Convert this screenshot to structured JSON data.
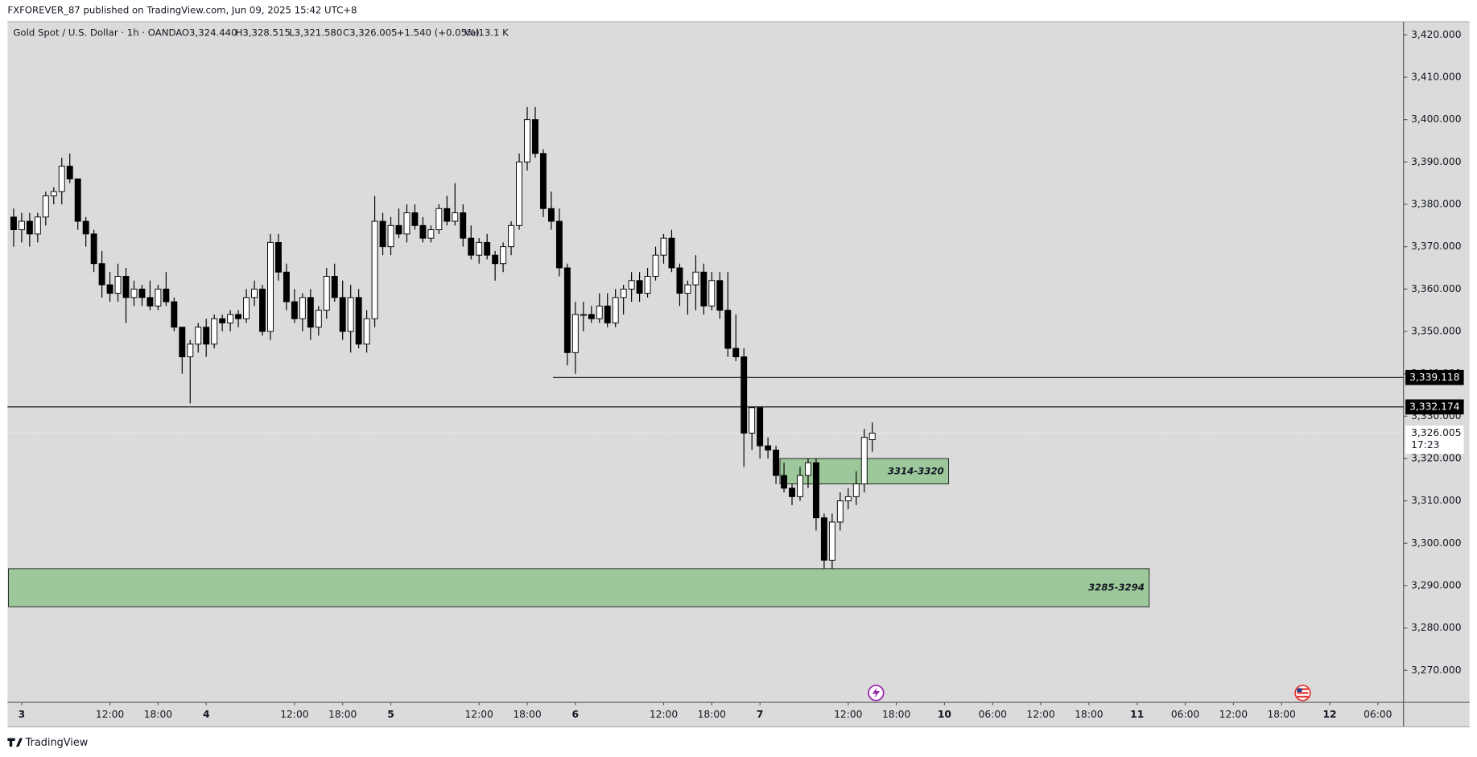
{
  "header": {
    "publisher": "FXFOREVER_87 published on TradingView.com, Jun 09, 2025 15:42 UTC+8"
  },
  "footer": {
    "brand": "TradingView"
  },
  "chart_data": {
    "type": "candlestick",
    "title": "Gold Spot / U.S. Dollar · 1h · OANDA",
    "ohlc_labels": [
      "O3,324.440",
      "H3,328.515",
      "L3,321.580",
      "C3,326.005"
    ],
    "change_label": "+1.540 (+0.05%)",
    "volume_label": "Vol13.1 K",
    "open": [
      3377,
      3374,
      3376,
      3373,
      3377,
      3382,
      3383,
      3389,
      3386,
      3376,
      3373,
      3366,
      3361,
      3359,
      3363,
      3358,
      3360,
      3358,
      3356,
      3360,
      3357,
      3351,
      3344,
      3347,
      3351,
      3347,
      3353,
      3352,
      3354,
      3353,
      3358,
      3360,
      3350,
      3371,
      3364,
      3357,
      3353,
      3358,
      3351,
      3355,
      3363,
      3358,
      3350,
      3358,
      3347,
      3353,
      3376,
      3370,
      3375,
      3373,
      3378,
      3375,
      3372,
      3374,
      3379,
      3376,
      3378,
      3372,
      3368,
      3371,
      3368,
      3366,
      3370,
      3375,
      3390,
      3400,
      3392,
      3379,
      3376,
      3365,
      3345,
      3354,
      3354,
      3353,
      3356,
      3352,
      3358,
      3360,
      3362,
      3359,
      3363,
      3368,
      3372,
      3365,
      3359,
      3361,
      3364,
      3356,
      3362,
      3355,
      3346,
      3344,
      3326,
      3332,
      3323,
      3322,
      3316,
      3313,
      3311,
      3316,
      3319,
      3306,
      3296,
      3305,
      3310,
      3311,
      3314,
      3324.44
    ],
    "high": [
      3379,
      3378,
      3378,
      3378,
      3383,
      3384,
      3391,
      3392,
      3386,
      3377,
      3374,
      3369,
      3364,
      3366,
      3365,
      3362,
      3361,
      3362,
      3361,
      3364,
      3358,
      3351,
      3348,
      3352,
      3353,
      3354,
      3354,
      3355,
      3355,
      3360,
      3362,
      3361,
      3373,
      3373,
      3366,
      3360,
      3359,
      3360,
      3356,
      3365,
      3366,
      3362,
      3361,
      3360,
      3355,
      3382,
      3378,
      3377,
      3379,
      3380,
      3380,
      3377,
      3375,
      3380,
      3382,
      3385,
      3380,
      3375,
      3372,
      3373,
      3369,
      3371,
      3376,
      3392,
      3403,
      3403,
      3393,
      3383,
      3379,
      3366,
      3357,
      3357,
      3356,
      3359,
      3359,
      3360,
      3361,
      3364,
      3364,
      3365,
      3370,
      3373,
      3374,
      3366,
      3362,
      3368,
      3366,
      3364,
      3364,
      3364,
      3354,
      3346,
      3332,
      3332,
      3325,
      3323,
      3319,
      3314,
      3318,
      3320,
      3320,
      3307,
      3307,
      3312,
      3313,
      3317,
      3327,
      3328.515
    ],
    "low": [
      3370,
      3371,
      3370,
      3371,
      3375,
      3380,
      3380,
      3385,
      3374,
      3370,
      3364,
      3358,
      3357,
      3357,
      3352,
      3356,
      3356,
      3355,
      3355,
      3356,
      3350,
      3340,
      3333,
      3345,
      3344,
      3346,
      3350,
      3350,
      3351,
      3352,
      3356,
      3349,
      3348,
      3362,
      3355,
      3352,
      3350,
      3348,
      3349,
      3353,
      3357,
      3348,
      3345,
      3346,
      3345,
      3351,
      3368,
      3368,
      3372,
      3371,
      3374,
      3371,
      3371,
      3373,
      3375,
      3375,
      3370,
      3367,
      3366,
      3367,
      3362,
      3364,
      3368,
      3374,
      3388,
      3391,
      3377,
      3374,
      3363,
      3342,
      3340,
      3350,
      3352,
      3352,
      3351,
      3351,
      3354,
      3357,
      3357,
      3358,
      3362,
      3366,
      3364,
      3356,
      3354,
      3355,
      3354,
      3355,
      3353,
      3344,
      3343,
      3318,
      3322,
      3320,
      3320,
      3314,
      3312,
      3309,
      3310,
      3313,
      3303,
      3294,
      3294,
      3303,
      3308,
      3309,
      3312,
      3321.58
    ],
    "close": [
      3374,
      3376,
      3373,
      3377,
      3382,
      3383,
      3389,
      3386,
      3376,
      3373,
      3366,
      3361,
      3359,
      3363,
      3358,
      3360,
      3358,
      3356,
      3360,
      3357,
      3351,
      3344,
      3347,
      3351,
      3347,
      3353,
      3352,
      3354,
      3353,
      3358,
      3360,
      3350,
      3371,
      3364,
      3357,
      3353,
      3358,
      3351,
      3355,
      3363,
      3358,
      3350,
      3358,
      3347,
      3353,
      3376,
      3370,
      3375,
      3373,
      3378,
      3375,
      3372,
      3374,
      3379,
      3376,
      3378,
      3372,
      3368,
      3371,
      3368,
      3366,
      3370,
      3375,
      3390,
      3400,
      3392,
      3379,
      3376,
      3365,
      3345,
      3354,
      3354,
      3353,
      3356,
      3352,
      3358,
      3360,
      3362,
      3359,
      3363,
      3368,
      3372,
      3365,
      3359,
      3361,
      3364,
      3356,
      3362,
      3355,
      3346,
      3344,
      3326,
      3332,
      3323,
      3322,
      3316,
      3313,
      3311,
      3316,
      3319,
      3306,
      3296,
      3305,
      3310,
      3311,
      3314,
      3325,
      3326.005
    ],
    "up_color": "#ffffff",
    "down_color": "#000000",
    "xlim": [
      -0.76,
      173.2
    ],
    "xticks": [
      {
        "value": 1,
        "label": "3"
      },
      {
        "value": 12,
        "label": "12:00"
      },
      {
        "value": 18,
        "label": "18:00"
      },
      {
        "value": 24,
        "label": "4"
      },
      {
        "value": 35,
        "label": "12:00"
      },
      {
        "value": 41,
        "label": "18:00"
      },
      {
        "value": 47,
        "label": "5"
      },
      {
        "value": 58,
        "label": "12:00"
      },
      {
        "value": 64,
        "label": "18:00"
      },
      {
        "value": 70,
        "label": "6"
      },
      {
        "value": 81,
        "label": "12:00"
      },
      {
        "value": 87,
        "label": "18:00"
      },
      {
        "value": 93,
        "label": "7"
      },
      {
        "value": 104,
        "label": "12:00"
      },
      {
        "value": 110,
        "label": "18:00"
      },
      {
        "value": 116,
        "label": "10"
      },
      {
        "value": 122,
        "label": "06:00"
      },
      {
        "value": 128,
        "label": "12:00"
      },
      {
        "value": 134,
        "label": "18:00"
      },
      {
        "value": 140,
        "label": "11"
      },
      {
        "value": 146,
        "label": "06:00"
      },
      {
        "value": 152,
        "label": "12:00"
      },
      {
        "value": 158,
        "label": "18:00"
      },
      {
        "value": 164,
        "label": "12"
      },
      {
        "value": 170,
        "label": "06:00"
      }
    ],
    "ylim": [
      3262.44,
      3423.11
    ],
    "yticks": [
      {
        "value": 3270,
        "label": "3,270.000"
      },
      {
        "value": 3280,
        "label": "3,280.000"
      },
      {
        "value": 3290,
        "label": "3,290.000"
      },
      {
        "value": 3300,
        "label": "3,300.000"
      },
      {
        "value": 3310,
        "label": "3,310.000"
      },
      {
        "value": 3320,
        "label": "3,320.000"
      },
      {
        "value": 3330,
        "label": "3,330.000"
      },
      {
        "value": 3340,
        "label": "3,340.000"
      },
      {
        "value": 3350,
        "label": "3,350.000"
      },
      {
        "value": 3360,
        "label": "3,360.000"
      },
      {
        "value": 3370,
        "label": "3,370.000"
      },
      {
        "value": 3380,
        "label": "3,380.000"
      },
      {
        "value": 3390,
        "label": "3,390.000"
      },
      {
        "value": 3400,
        "label": "3,400.000"
      },
      {
        "value": 3410,
        "label": "3,410.000"
      },
      {
        "value": 3420,
        "label": "3,420.000"
      }
    ],
    "price_lines": [
      {
        "value": 3339.118,
        "label": "3,339.118"
      },
      {
        "value": 3332.174,
        "label": "3,332.174"
      }
    ],
    "last_price": {
      "value": 3326.005,
      "label": "3,326.005",
      "countdown": "17:23"
    },
    "zones": [
      {
        "low": 3314,
        "high": 3320,
        "label": "3314-3320",
        "color": "#9dc89b"
      },
      {
        "low": 3285,
        "high": 3294,
        "label": "3285-3294",
        "color": "#9dc89b"
      }
    ]
  }
}
